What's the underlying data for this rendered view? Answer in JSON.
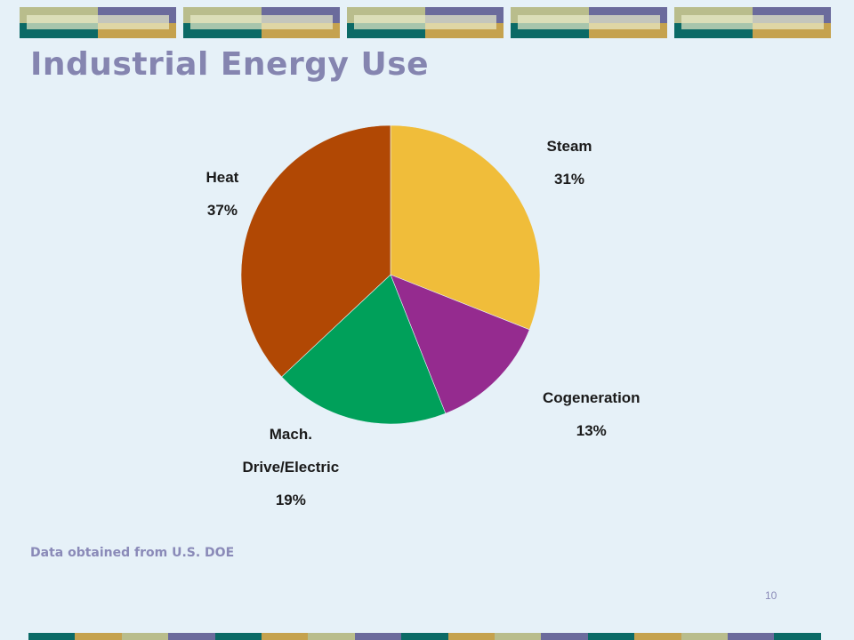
{
  "slide": {
    "title": "Industrial Energy Use",
    "source_note": "Data obtained from U.S. DOE",
    "page_number": "10"
  },
  "theme": {
    "background": "#e6f1f8",
    "title_color": "#8585b0",
    "deco_colors": {
      "sage": "#b9bd8c",
      "slate": "#6b6b9c",
      "teal": "#0b6a66",
      "gold": "#c5a24e",
      "highlight": "#e9eccb"
    }
  },
  "chart_data": {
    "type": "pie",
    "title": "",
    "start_angle_deg": 0,
    "direction": "clockwise",
    "slices": [
      {
        "label": "Steam",
        "value": 31,
        "display": "31%",
        "color": "#f0bd3a"
      },
      {
        "label": "Cogeneration",
        "value": 13,
        "display": "13%",
        "color": "#952b8f"
      },
      {
        "label": "Mach. Drive/Electric",
        "label_lines": [
          "Mach.",
          "Drive/Electric"
        ],
        "value": 19,
        "display": "19%",
        "color": "#00a05a"
      },
      {
        "label": "Heat",
        "value": 37,
        "display": "37%",
        "color": "#b14804"
      }
    ]
  }
}
